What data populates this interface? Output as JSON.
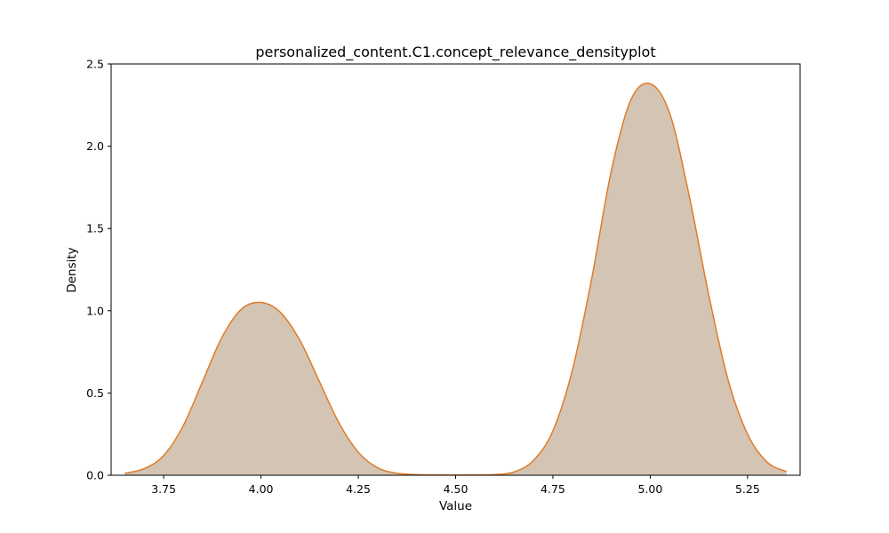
{
  "chart_data": {
    "type": "area",
    "title": "personalized_content.C1.concept_relevance_densityplot",
    "xlabel": "Value",
    "ylabel": "Density",
    "xlim": [
      3.615,
      5.385
    ],
    "ylim": [
      0,
      2.5
    ],
    "xticks": [
      3.75,
      4.0,
      4.25,
      4.5,
      4.75,
      5.0,
      5.25
    ],
    "xtick_labels": [
      "3.75",
      "4.00",
      "4.25",
      "4.50",
      "4.75",
      "5.00",
      "5.25"
    ],
    "yticks": [
      0.0,
      0.5,
      1.0,
      1.5,
      2.0,
      2.5
    ],
    "ytick_labels": [
      "0.0",
      "0.5",
      "1.0",
      "1.5",
      "2.0",
      "2.5"
    ],
    "grid": false,
    "legend": "none",
    "fill_color": "#d3c4b4",
    "line_color": "#e07b28",
    "series": [
      {
        "x": [
          3.65,
          3.7,
          3.75,
          3.8,
          3.85,
          3.9,
          3.95,
          4.0,
          4.05,
          4.1,
          4.15,
          4.2,
          4.25,
          4.3,
          4.35,
          4.4,
          4.45,
          4.5,
          4.55,
          4.6,
          4.65,
          4.7,
          4.75,
          4.8,
          4.85,
          4.9,
          4.95,
          5.0,
          5.05,
          5.1,
          5.15,
          5.2,
          5.25,
          5.3,
          5.35
        ],
        "values": [
          0.012,
          0.04,
          0.12,
          0.3,
          0.57,
          0.84,
          1.01,
          1.05,
          0.99,
          0.82,
          0.57,
          0.32,
          0.14,
          0.045,
          0.012,
          0.004,
          0.002,
          0.001,
          0.002,
          0.004,
          0.02,
          0.09,
          0.27,
          0.64,
          1.2,
          1.85,
          2.28,
          2.38,
          2.2,
          1.7,
          1.1,
          0.58,
          0.25,
          0.08,
          0.022
        ]
      }
    ]
  }
}
